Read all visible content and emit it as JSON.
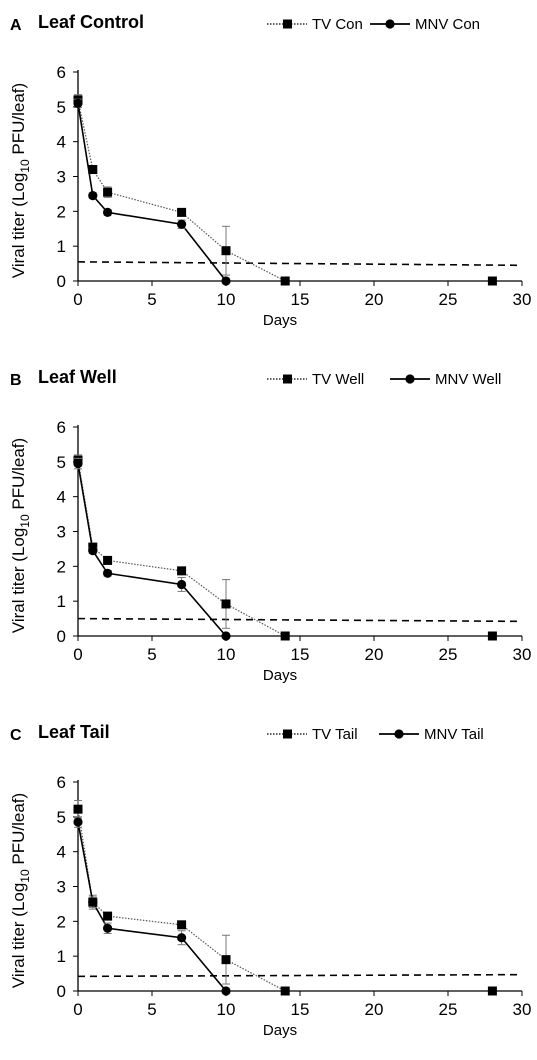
{
  "chart_data": [
    {
      "type": "line",
      "panel_letter": "A",
      "title": "Leaf Control",
      "xlabel": "Days",
      "ylabel": "Viral titer (Log10 PFU/leaf)",
      "xlim": [
        0,
        30
      ],
      "ylim": [
        0,
        6
      ],
      "x_ticks": [
        0,
        5,
        10,
        15,
        20,
        25,
        30
      ],
      "y_ticks": [
        0,
        1,
        2,
        3,
        4,
        5,
        6
      ],
      "grid": false,
      "legend_position": "top-right",
      "series": [
        {
          "name": "TV Con",
          "marker": "square",
          "line_style": "dotted",
          "x": [
            0,
            1,
            2,
            7,
            10,
            14,
            28
          ],
          "y": [
            5.2,
            3.2,
            2.55,
            1.97,
            0.87,
            0.0,
            0.0
          ],
          "error": [
            0.15,
            0.1,
            0.15,
            0.1,
            0.7,
            0,
            0
          ],
          "connected_until_index": 5
        },
        {
          "name": "MNV Con",
          "marker": "circle",
          "line_style": "solid",
          "x": [
            0,
            1,
            2,
            7,
            10
          ],
          "y": [
            5.1,
            2.45,
            1.97,
            1.63,
            0.0
          ],
          "error": [
            0.12,
            0.08,
            0.08,
            0.12,
            0
          ],
          "connected_until_index": 4
        }
      ],
      "detection_limit": {
        "style": "dashed",
        "x": [
          0,
          30
        ],
        "y": [
          0.55,
          0.45
        ]
      }
    },
    {
      "type": "line",
      "panel_letter": "B",
      "title": "Leaf Well",
      "xlabel": "Days",
      "ylabel": "Viral titer (Log10 PFU/leaf)",
      "xlim": [
        0,
        30
      ],
      "ylim": [
        0,
        6
      ],
      "x_ticks": [
        0,
        5,
        10,
        15,
        20,
        25,
        30
      ],
      "y_ticks": [
        0,
        1,
        2,
        3,
        4,
        5,
        6
      ],
      "grid": false,
      "legend_position": "top-right",
      "series": [
        {
          "name": "TV Well",
          "marker": "square",
          "line_style": "dotted",
          "x": [
            0,
            1,
            2,
            7,
            10,
            14,
            28
          ],
          "y": [
            5.05,
            2.55,
            2.17,
            1.87,
            0.92,
            0.0,
            0.0
          ],
          "error": [
            0.15,
            0.12,
            0.1,
            0.1,
            0.7,
            0,
            0
          ],
          "connected_until_index": 5
        },
        {
          "name": "MNV Well",
          "marker": "circle",
          "line_style": "solid",
          "x": [
            0,
            1,
            2,
            7,
            10
          ],
          "y": [
            4.95,
            2.45,
            1.8,
            1.48,
            0.0
          ],
          "error": [
            0.15,
            0.08,
            0.08,
            0.2,
            0
          ],
          "connected_until_index": 4
        }
      ],
      "detection_limit": {
        "style": "dashed",
        "x": [
          0,
          30
        ],
        "y": [
          0.5,
          0.42
        ]
      }
    },
    {
      "type": "line",
      "panel_letter": "C",
      "title": "Leaf Tail",
      "xlabel": "Days",
      "ylabel": "Viral titer (Log10 PFU/leaf)",
      "xlim": [
        0,
        30
      ],
      "ylim": [
        0,
        6
      ],
      "x_ticks": [
        0,
        5,
        10,
        15,
        20,
        25,
        30
      ],
      "y_ticks": [
        0,
        1,
        2,
        3,
        4,
        5,
        6
      ],
      "grid": false,
      "legend_position": "top-right",
      "series": [
        {
          "name": "TV Tail",
          "marker": "square",
          "line_style": "dotted",
          "x": [
            0,
            1,
            2,
            7,
            10,
            14,
            28
          ],
          "y": [
            5.22,
            2.55,
            2.15,
            1.9,
            0.9,
            0.0,
            0.0
          ],
          "error": [
            0.25,
            0.2,
            0.1,
            0.1,
            0.7,
            0,
            0
          ],
          "connected_until_index": 5
        },
        {
          "name": "MNV Tail",
          "marker": "circle",
          "line_style": "solid",
          "x": [
            0,
            1,
            2,
            7,
            10
          ],
          "y": [
            4.85,
            2.55,
            1.8,
            1.53,
            0.0
          ],
          "error": [
            0.15,
            0.15,
            0.15,
            0.2,
            0
          ],
          "connected_until_index": 4
        }
      ],
      "detection_limit": {
        "style": "dashed",
        "x": [
          0,
          30
        ],
        "y": [
          0.42,
          0.47
        ]
      }
    }
  ]
}
